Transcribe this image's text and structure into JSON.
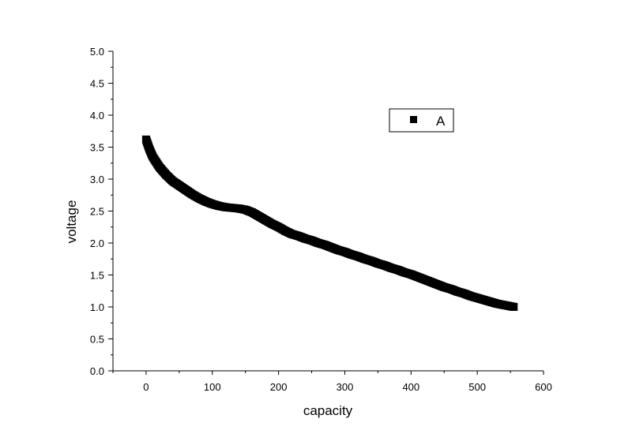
{
  "chart_data": {
    "type": "scatter",
    "title": "",
    "xlabel": "capacity",
    "ylabel": "voltage",
    "xlim": [
      -50,
      600
    ],
    "ylim": [
      0.0,
      5.0
    ],
    "x_ticks": [
      0,
      100,
      200,
      300,
      400,
      500,
      600
    ],
    "y_ticks": [
      "0.0",
      "0.5",
      "1.0",
      "1.5",
      "2.0",
      "2.5",
      "3.0",
      "3.5",
      "4.0",
      "4.5",
      "5.0"
    ],
    "grid": false,
    "legend_position": "top-right",
    "series": [
      {
        "name": "A",
        "marker": "square",
        "color": "#000000",
        "x": [
          0,
          5,
          10,
          20,
          30,
          40,
          50,
          60,
          70,
          80,
          90,
          100,
          110,
          120,
          130,
          140,
          150,
          160,
          170,
          180,
          190,
          200,
          210,
          220,
          230,
          240,
          250,
          260,
          270,
          280,
          290,
          300,
          310,
          320,
          330,
          340,
          350,
          360,
          370,
          380,
          390,
          400,
          410,
          420,
          430,
          440,
          450,
          460,
          470,
          480,
          490,
          500,
          510,
          520,
          530,
          540,
          555
        ],
        "y": [
          3.62,
          3.47,
          3.35,
          3.19,
          3.07,
          2.97,
          2.9,
          2.83,
          2.76,
          2.7,
          2.65,
          2.61,
          2.58,
          2.56,
          2.55,
          2.54,
          2.52,
          2.48,
          2.42,
          2.36,
          2.3,
          2.25,
          2.19,
          2.14,
          2.11,
          2.07,
          2.04,
          2.0,
          1.97,
          1.93,
          1.89,
          1.86,
          1.82,
          1.79,
          1.75,
          1.72,
          1.68,
          1.65,
          1.61,
          1.58,
          1.54,
          1.51,
          1.47,
          1.43,
          1.39,
          1.35,
          1.31,
          1.28,
          1.24,
          1.21,
          1.17,
          1.14,
          1.11,
          1.08,
          1.05,
          1.03,
          1.0
        ]
      }
    ]
  }
}
